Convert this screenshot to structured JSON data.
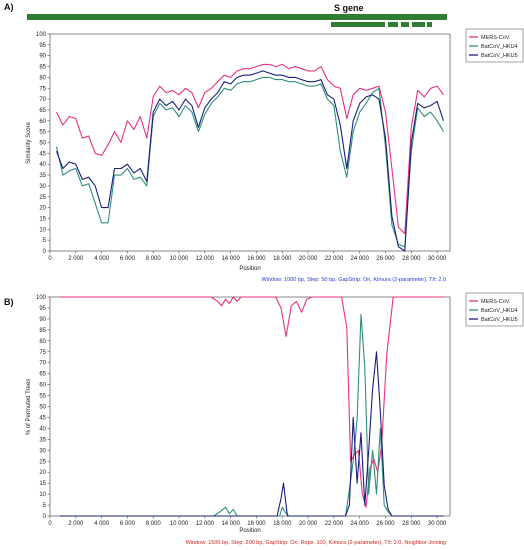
{
  "colors": {
    "mers": "#e8317f",
    "hku4": "#2f8f7f",
    "hku5": "#1a1f7a",
    "genome": "#2e7d32",
    "footA": "#2b3ad0",
    "footB": "#d42020"
  },
  "genome_map": {
    "title": "S gene"
  },
  "chart_data": [
    {
      "id": "A",
      "type": "line",
      "panel_label": "A)",
      "title": "",
      "xlabel": "Position",
      "ylabel": "Similarity Score",
      "xlim": [
        0,
        31000
      ],
      "ylim": [
        0,
        100
      ],
      "xticks": [
        0,
        2000,
        4000,
        6000,
        8000,
        10000,
        12000,
        14000,
        16000,
        18000,
        20000,
        22000,
        24000,
        26000,
        28000,
        30000
      ],
      "xtick_labels": [
        "0",
        "2 000",
        "4 000",
        "6 000",
        "8 000",
        "10 000",
        "12 000",
        "14 000",
        "16 000",
        "18 000",
        "20 000",
        "22 000",
        "24 000",
        "26 000",
        "28 000",
        "30 000"
      ],
      "yticks": [
        0,
        5,
        10,
        15,
        20,
        25,
        30,
        35,
        40,
        45,
        50,
        55,
        60,
        65,
        70,
        75,
        80,
        85,
        90,
        95,
        100
      ],
      "grid": false,
      "legend_position": "top-right",
      "footnote": "Window: 1000 bp, Step: 50 bp, GapStrip: On, Kimura (2-parameter), T/t: 2.0",
      "series": [
        {
          "name": "MERS-CoV",
          "x": [
            500,
            1000,
            1500,
            2000,
            2500,
            3000,
            3500,
            4000,
            4500,
            5000,
            5500,
            6000,
            6500,
            7000,
            7500,
            8000,
            8500,
            9000,
            9500,
            10000,
            10500,
            11000,
            11500,
            12000,
            12500,
            13000,
            13500,
            14000,
            14500,
            15000,
            15500,
            16000,
            16500,
            17000,
            17500,
            18000,
            18500,
            19000,
            19500,
            20000,
            20500,
            21000,
            21500,
            22000,
            22500,
            23000,
            23500,
            24000,
            24500,
            25000,
            25500,
            26000,
            26500,
            27000,
            27500,
            28000,
            28500,
            29000,
            29500,
            30000,
            30500
          ],
          "y": [
            64,
            58,
            62,
            61,
            52,
            53,
            45,
            44,
            49,
            55,
            50,
            60,
            56,
            62,
            52,
            71,
            76,
            73,
            74,
            72,
            75,
            73,
            66,
            73,
            75,
            78,
            81,
            80,
            83,
            84,
            84,
            85,
            86,
            86,
            85,
            86,
            84,
            85,
            84,
            83,
            83,
            85,
            79,
            76,
            75,
            61,
            72,
            75,
            74,
            75,
            76,
            64,
            38,
            11,
            8,
            57,
            74,
            71,
            75,
            76,
            72
          ]
        },
        {
          "name": "BatCoV_HKU4",
          "x": [
            500,
            1000,
            1500,
            2000,
            2500,
            3000,
            3500,
            4000,
            4500,
            5000,
            5500,
            6000,
            6500,
            7000,
            7500,
            8000,
            8500,
            9000,
            9500,
            10000,
            10500,
            11000,
            11500,
            12000,
            12500,
            13000,
            13500,
            14000,
            14500,
            15000,
            15500,
            16000,
            16500,
            17000,
            17500,
            18000,
            18500,
            19000,
            19500,
            20000,
            20500,
            21000,
            21500,
            22000,
            22500,
            23000,
            23500,
            24000,
            24500,
            25000,
            25500,
            26000,
            26500,
            27000,
            27500,
            28000,
            28500,
            29000,
            29500,
            30000,
            30500
          ],
          "y": [
            48,
            35,
            37,
            38,
            30,
            31,
            22,
            13,
            13,
            35,
            35,
            38,
            33,
            34,
            30,
            62,
            68,
            65,
            66,
            62,
            67,
            64,
            55,
            63,
            68,
            71,
            75,
            74,
            77,
            78,
            78,
            79,
            80,
            80,
            79,
            79,
            78,
            78,
            77,
            76,
            76,
            77,
            70,
            67,
            46,
            34,
            55,
            64,
            68,
            73,
            75,
            48,
            12,
            3,
            2,
            46,
            66,
            62,
            64,
            60,
            55
          ]
        },
        {
          "name": "BatCoV_HKU5",
          "x": [
            500,
            1000,
            1500,
            2000,
            2500,
            3000,
            3500,
            4000,
            4500,
            5000,
            5500,
            6000,
            6500,
            7000,
            7500,
            8000,
            8500,
            9000,
            9500,
            10000,
            10500,
            11000,
            11500,
            12000,
            12500,
            13000,
            13500,
            14000,
            14500,
            15000,
            15500,
            16000,
            16500,
            17000,
            17500,
            18000,
            18500,
            19000,
            19500,
            20000,
            20500,
            21000,
            21500,
            22000,
            22500,
            23000,
            23500,
            24000,
            24500,
            25000,
            25500,
            26000,
            26500,
            27000,
            27500,
            28000,
            28500,
            29000,
            29500,
            30000,
            30500
          ],
          "y": [
            46,
            38,
            41,
            40,
            33,
            34,
            30,
            20,
            20,
            38,
            38,
            40,
            36,
            38,
            32,
            64,
            70,
            67,
            69,
            65,
            70,
            67,
            57,
            66,
            70,
            73,
            78,
            77,
            80,
            81,
            81,
            82,
            83,
            82,
            81,
            81,
            80,
            80,
            79,
            78,
            78,
            79,
            72,
            70,
            58,
            38,
            60,
            68,
            71,
            72,
            70,
            52,
            16,
            2,
            0,
            50,
            68,
            66,
            67,
            69,
            60
          ]
        }
      ]
    },
    {
      "id": "B",
      "type": "line",
      "panel_label": "B)",
      "title": "",
      "xlabel": "Position",
      "ylabel": "% of Permuted Trees",
      "xlim": [
        0,
        31000
      ],
      "ylim": [
        0,
        100
      ],
      "xticks": [
        0,
        2000,
        4000,
        6000,
        8000,
        10000,
        12000,
        14000,
        16000,
        18000,
        20000,
        22000,
        24000,
        26000,
        28000,
        30000
      ],
      "xtick_labels": [
        "0",
        "2 000",
        "4 000",
        "6 000",
        "8 000",
        "10 000",
        "12 000",
        "14 000",
        "16 000",
        "18 000",
        "20 000",
        "22 000",
        "24 000",
        "26 000",
        "28 000",
        "30 000"
      ],
      "yticks": [
        0,
        5,
        10,
        15,
        20,
        25,
        30,
        35,
        40,
        45,
        50,
        55,
        60,
        65,
        70,
        75,
        80,
        85,
        90,
        95,
        100
      ],
      "grid": false,
      "legend_position": "top-right",
      "footnote": "Window: 1500 bp, Step: 200 bp, GapStrip: On, Reps: 100, Kimura (2-parameter), T/t: 2.0, Neighbor-Joining",
      "series": [
        {
          "name": "MERS-CoV",
          "x": [
            750,
            12500,
            13000,
            13300,
            13600,
            13900,
            14200,
            14500,
            14800,
            15200,
            17500,
            17900,
            18300,
            18700,
            19100,
            19500,
            19900,
            20300,
            22600,
            23000,
            23300,
            23600,
            23900,
            24200,
            24500,
            24800,
            25100,
            25400,
            25700,
            26100,
            26600,
            30500
          ],
          "y": [
            100,
            100,
            98,
            96,
            99,
            97,
            100,
            98,
            100,
            100,
            100,
            95,
            82,
            96,
            98,
            93,
            99,
            100,
            100,
            86,
            25,
            28,
            30,
            10,
            4,
            22,
            26,
            20,
            32,
            74,
            100,
            100
          ]
        },
        {
          "name": "BatCoV_HKU4",
          "x": [
            750,
            12700,
            13200,
            13600,
            13900,
            14200,
            14500,
            17800,
            18000,
            18200,
            18500,
            22900,
            23200,
            23500,
            23800,
            24100,
            24400,
            24700,
            25000,
            25300,
            25600,
            25900,
            26200,
            26500,
            30500
          ],
          "y": [
            0,
            0,
            2,
            4,
            1,
            3,
            0,
            0,
            4,
            2,
            0,
            0,
            12,
            25,
            44,
            92,
            68,
            10,
            30,
            10,
            40,
            5,
            2,
            0,
            0
          ]
        },
        {
          "name": "BatCoV_HKU5",
          "x": [
            750,
            17600,
            17900,
            18100,
            18400,
            22900,
            23200,
            23500,
            23800,
            24100,
            24400,
            24700,
            25000,
            25300,
            25600,
            25900,
            26200,
            26500,
            30500
          ],
          "y": [
            0,
            0,
            8,
            15,
            0,
            0,
            5,
            45,
            15,
            38,
            5,
            30,
            58,
            75,
            48,
            14,
            3,
            0,
            0
          ]
        }
      ]
    }
  ]
}
